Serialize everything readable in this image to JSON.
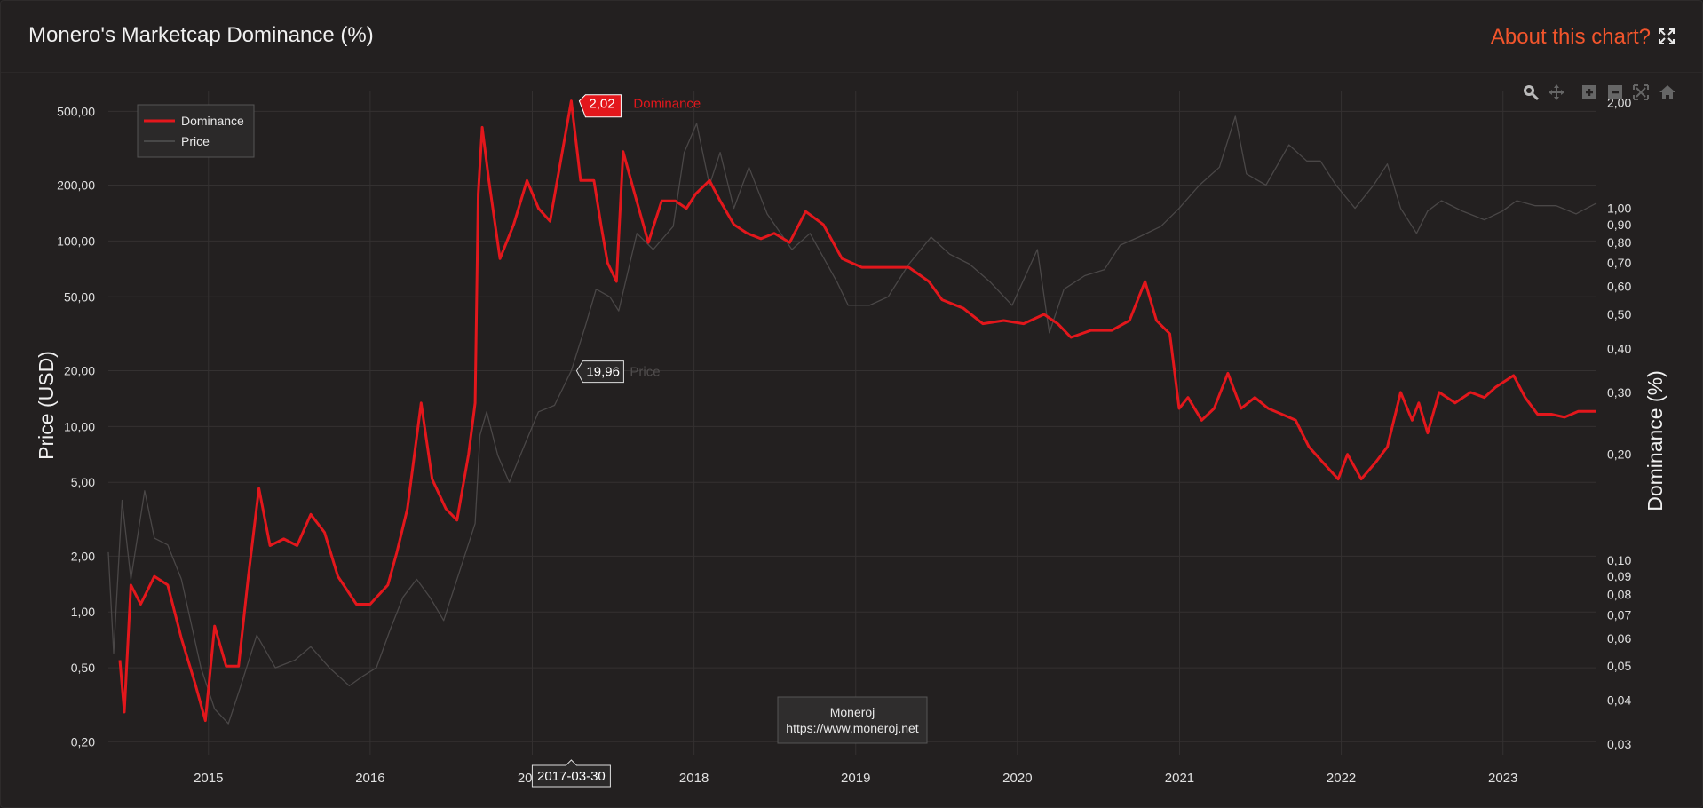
{
  "header": {
    "title": "Monero's Marketcap Dominance (%)",
    "about_label": "About this chart?"
  },
  "toolbar": {
    "icons": [
      "zoom-icon",
      "pan-icon",
      "zoom-in-icon",
      "zoom-out-icon",
      "autoscale-icon",
      "reset-home-icon"
    ]
  },
  "colors": {
    "dominance": "#e3171c",
    "price": "#4a4747",
    "accent": "#f2552c",
    "grid": "#343131"
  },
  "watermark": {
    "line1": "Moneroj",
    "line2": "https://www.moneroj.net"
  },
  "hover": {
    "date_label": "2017-03-30",
    "dominance_value": "2,02",
    "dominance_name": "Dominance",
    "price_value": "19,96",
    "price_name": "Price"
  },
  "chart_data": {
    "type": "line",
    "title": "Monero's Marketcap Dominance (%)",
    "xlabel": "",
    "y_left_label": "Price (USD)",
    "y_right_label": "Dominance (%)",
    "y_left_scale": "log",
    "y_right_scale": "log",
    "y_left_range": [
      0.17,
      640
    ],
    "y_right_range": [
      0.028,
      2.15
    ],
    "x_range": [
      "2014-05-20",
      "2023-07-31"
    ],
    "grid": true,
    "legend_position": "top-left",
    "x_ticks": [
      "2015",
      "2016",
      "2017",
      "2018",
      "2019",
      "2020",
      "2021",
      "2022",
      "2023"
    ],
    "y_left_ticks": [
      {
        "v": 0.2,
        "label": "0,20"
      },
      {
        "v": 0.5,
        "label": "0,50"
      },
      {
        "v": 1,
        "label": "1,00"
      },
      {
        "v": 2,
        "label": "2,00"
      },
      {
        "v": 5,
        "label": "5,00"
      },
      {
        "v": 10,
        "label": "10,00"
      },
      {
        "v": 20,
        "label": "20,00"
      },
      {
        "v": 50,
        "label": "50,00"
      },
      {
        "v": 100,
        "label": "100,00"
      },
      {
        "v": 200,
        "label": "200,00"
      },
      {
        "v": 500,
        "label": "500,00"
      }
    ],
    "y_right_ticks": [
      {
        "v": 0.03,
        "label": "0,03"
      },
      {
        "v": 0.04,
        "label": "0,04"
      },
      {
        "v": 0.05,
        "label": "0,05"
      },
      {
        "v": 0.06,
        "label": "0,06"
      },
      {
        "v": 0.07,
        "label": "0,07"
      },
      {
        "v": 0.08,
        "label": "0,08"
      },
      {
        "v": 0.09,
        "label": "0,09"
      },
      {
        "v": 0.1,
        "label": "0,10"
      },
      {
        "v": 0.2,
        "label": "0,20"
      },
      {
        "v": 0.3,
        "label": "0,30"
      },
      {
        "v": 0.4,
        "label": "0,40"
      },
      {
        "v": 0.5,
        "label": "0,50"
      },
      {
        "v": 0.6,
        "label": "0,60"
      },
      {
        "v": 0.7,
        "label": "0,70"
      },
      {
        "v": 0.8,
        "label": "0,80"
      },
      {
        "v": 0.9,
        "label": "0,90"
      },
      {
        "v": 1,
        "label": "1,00"
      },
      {
        "v": 2,
        "label": "2,00"
      }
    ],
    "hover_date": "2017-03-30",
    "series": [
      {
        "name": "Price",
        "axis": "left",
        "points": [
          [
            "2014-05-20",
            2.1
          ],
          [
            "2014-06-01",
            0.6
          ],
          [
            "2014-06-20",
            4.0
          ],
          [
            "2014-07-10",
            1.5
          ],
          [
            "2014-08-10",
            4.5
          ],
          [
            "2014-09-01",
            2.5
          ],
          [
            "2014-10-01",
            2.3
          ],
          [
            "2014-11-01",
            1.5
          ],
          [
            "2014-12-15",
            0.5
          ],
          [
            "2015-01-15",
            0.3
          ],
          [
            "2015-02-15",
            0.25
          ],
          [
            "2015-03-15",
            0.4
          ],
          [
            "2015-04-20",
            0.75
          ],
          [
            "2015-06-01",
            0.5
          ],
          [
            "2015-07-15",
            0.55
          ],
          [
            "2015-08-20",
            0.65
          ],
          [
            "2015-10-01",
            0.5
          ],
          [
            "2015-11-15",
            0.4
          ],
          [
            "2015-12-15",
            0.45
          ],
          [
            "2016-01-15",
            0.5
          ],
          [
            "2016-02-15",
            0.8
          ],
          [
            "2016-03-15",
            1.2
          ],
          [
            "2016-04-15",
            1.5
          ],
          [
            "2016-05-15",
            1.2
          ],
          [
            "2016-06-15",
            0.9
          ],
          [
            "2016-07-15",
            1.5
          ],
          [
            "2016-08-01",
            2.0
          ],
          [
            "2016-08-25",
            3.0
          ],
          [
            "2016-09-05",
            9.0
          ],
          [
            "2016-09-20",
            12.0
          ],
          [
            "2016-10-15",
            7.0
          ],
          [
            "2016-11-10",
            5.0
          ],
          [
            "2016-12-15",
            8.0
          ],
          [
            "2017-01-15",
            12.0
          ],
          [
            "2017-02-20",
            13.0
          ],
          [
            "2017-03-30",
            19.96
          ],
          [
            "2017-05-01",
            35.0
          ],
          [
            "2017-05-25",
            55.0
          ],
          [
            "2017-06-25",
            50.0
          ],
          [
            "2017-07-15",
            42.0
          ],
          [
            "2017-08-25",
            110.0
          ],
          [
            "2017-10-01",
            90.0
          ],
          [
            "2017-11-15",
            120.0
          ],
          [
            "2017-12-10",
            300.0
          ],
          [
            "2018-01-07",
            430.0
          ],
          [
            "2018-02-05",
            200.0
          ],
          [
            "2018-03-01",
            300.0
          ],
          [
            "2018-04-01",
            150.0
          ],
          [
            "2018-05-05",
            250.0
          ],
          [
            "2018-06-15",
            140.0
          ],
          [
            "2018-08-10",
            90.0
          ],
          [
            "2018-09-20",
            110.0
          ],
          [
            "2018-11-20",
            60.0
          ],
          [
            "2018-12-15",
            45.0
          ],
          [
            "2019-02-01",
            45.0
          ],
          [
            "2019-03-15",
            50.0
          ],
          [
            "2019-05-01",
            75.0
          ],
          [
            "2019-06-20",
            105.0
          ],
          [
            "2019-08-01",
            85.0
          ],
          [
            "2019-09-15",
            75.0
          ],
          [
            "2019-11-01",
            60.0
          ],
          [
            "2019-12-20",
            45.0
          ],
          [
            "2020-02-15",
            90.0
          ],
          [
            "2020-03-13",
            32.0
          ],
          [
            "2020-04-15",
            55.0
          ],
          [
            "2020-06-01",
            65.0
          ],
          [
            "2020-07-15",
            70.0
          ],
          [
            "2020-08-20",
            95.0
          ],
          [
            "2020-10-01",
            105.0
          ],
          [
            "2020-11-20",
            120.0
          ],
          [
            "2020-12-31",
            150.0
          ],
          [
            "2021-02-15",
            200.0
          ],
          [
            "2021-04-01",
            250.0
          ],
          [
            "2021-05-07",
            470.0
          ],
          [
            "2021-06-01",
            230.0
          ],
          [
            "2021-07-15",
            200.0
          ],
          [
            "2021-09-05",
            330.0
          ],
          [
            "2021-10-15",
            270.0
          ],
          [
            "2021-11-15",
            270.0
          ],
          [
            "2021-12-20",
            200.0
          ],
          [
            "2022-02-01",
            150.0
          ],
          [
            "2022-03-15",
            200.0
          ],
          [
            "2022-04-15",
            260.0
          ],
          [
            "2022-05-15",
            150.0
          ],
          [
            "2022-06-20",
            110.0
          ],
          [
            "2022-07-15",
            145.0
          ],
          [
            "2022-08-15",
            165.0
          ],
          [
            "2022-10-01",
            145.0
          ],
          [
            "2022-11-20",
            130.0
          ],
          [
            "2022-12-31",
            145.0
          ],
          [
            "2023-02-01",
            165.0
          ],
          [
            "2023-03-15",
            155.0
          ],
          [
            "2023-05-01",
            155.0
          ],
          [
            "2023-06-15",
            140.0
          ],
          [
            "2023-07-31",
            160.0
          ]
        ]
      },
      {
        "name": "Dominance",
        "axis": "right",
        "points": [
          [
            "2014-06-15",
            0.052
          ],
          [
            "2014-06-25",
            0.037
          ],
          [
            "2014-07-10",
            0.085
          ],
          [
            "2014-08-01",
            0.075
          ],
          [
            "2014-09-01",
            0.09
          ],
          [
            "2014-10-01",
            0.085
          ],
          [
            "2014-11-01",
            0.06
          ],
          [
            "2014-12-01",
            0.045
          ],
          [
            "2014-12-25",
            0.035
          ],
          [
            "2015-01-15",
            0.065
          ],
          [
            "2015-02-10",
            0.05
          ],
          [
            "2015-03-10",
            0.05
          ],
          [
            "2015-04-01",
            0.09
          ],
          [
            "2015-04-25",
            0.16
          ],
          [
            "2015-05-20",
            0.11
          ],
          [
            "2015-06-20",
            0.115
          ],
          [
            "2015-07-20",
            0.11
          ],
          [
            "2015-08-20",
            0.135
          ],
          [
            "2015-09-20",
            0.12
          ],
          [
            "2015-10-20",
            0.09
          ],
          [
            "2015-12-01",
            0.075
          ],
          [
            "2016-01-01",
            0.075
          ],
          [
            "2016-02-10",
            0.085
          ],
          [
            "2016-03-01",
            0.105
          ],
          [
            "2016-03-25",
            0.14
          ],
          [
            "2016-04-25",
            0.28
          ],
          [
            "2016-05-20",
            0.17
          ],
          [
            "2016-06-20",
            0.14
          ],
          [
            "2016-07-15",
            0.13
          ],
          [
            "2016-08-10",
            0.2
          ],
          [
            "2016-08-25",
            0.28
          ],
          [
            "2016-09-01",
            1.1
          ],
          [
            "2016-09-10",
            1.7
          ],
          [
            "2016-09-25",
            1.2
          ],
          [
            "2016-10-20",
            0.72
          ],
          [
            "2016-11-20",
            0.9
          ],
          [
            "2016-12-20",
            1.2
          ],
          [
            "2017-01-15",
            1.0
          ],
          [
            "2017-02-10",
            0.92
          ],
          [
            "2017-03-30",
            2.02
          ],
          [
            "2017-04-20",
            1.2
          ],
          [
            "2017-05-20",
            1.2
          ],
          [
            "2017-06-05",
            0.9
          ],
          [
            "2017-06-20",
            0.7
          ],
          [
            "2017-07-10",
            0.62
          ],
          [
            "2017-07-25",
            1.45
          ],
          [
            "2017-08-20",
            1.1
          ],
          [
            "2017-09-20",
            0.8
          ],
          [
            "2017-10-20",
            1.05
          ],
          [
            "2017-11-20",
            1.05
          ],
          [
            "2017-12-15",
            1.0
          ],
          [
            "2018-01-05",
            1.1
          ],
          [
            "2018-02-05",
            1.2
          ],
          [
            "2018-03-01",
            1.05
          ],
          [
            "2018-04-01",
            0.9
          ],
          [
            "2018-05-01",
            0.85
          ],
          [
            "2018-06-01",
            0.82
          ],
          [
            "2018-07-01",
            0.85
          ],
          [
            "2018-08-05",
            0.8
          ],
          [
            "2018-09-10",
            0.98
          ],
          [
            "2018-10-20",
            0.9
          ],
          [
            "2018-12-01",
            0.72
          ],
          [
            "2019-01-15",
            0.68
          ],
          [
            "2019-03-01",
            0.68
          ],
          [
            "2019-05-01",
            0.68
          ],
          [
            "2019-06-15",
            0.62
          ],
          [
            "2019-07-15",
            0.55
          ],
          [
            "2019-09-01",
            0.52
          ],
          [
            "2019-10-15",
            0.47
          ],
          [
            "2019-12-01",
            0.48
          ],
          [
            "2020-01-15",
            0.47
          ],
          [
            "2020-03-01",
            0.5
          ],
          [
            "2020-04-01",
            0.47
          ],
          [
            "2020-05-01",
            0.43
          ],
          [
            "2020-06-15",
            0.45
          ],
          [
            "2020-08-01",
            0.45
          ],
          [
            "2020-09-10",
            0.48
          ],
          [
            "2020-10-15",
            0.62
          ],
          [
            "2020-11-10",
            0.48
          ],
          [
            "2020-12-10",
            0.44
          ],
          [
            "2020-12-31",
            0.27
          ],
          [
            "2021-01-20",
            0.29
          ],
          [
            "2021-02-20",
            0.25
          ],
          [
            "2021-03-20",
            0.27
          ],
          [
            "2021-04-20",
            0.34
          ],
          [
            "2021-05-20",
            0.27
          ],
          [
            "2021-06-20",
            0.29
          ],
          [
            "2021-07-20",
            0.27
          ],
          [
            "2021-08-20",
            0.26
          ],
          [
            "2021-09-20",
            0.25
          ],
          [
            "2021-10-20",
            0.21
          ],
          [
            "2021-11-20",
            0.19
          ],
          [
            "2021-12-25",
            0.17
          ],
          [
            "2022-01-15",
            0.2
          ],
          [
            "2022-02-15",
            0.17
          ],
          [
            "2022-03-20",
            0.19
          ],
          [
            "2022-04-15",
            0.21
          ],
          [
            "2022-05-15",
            0.3
          ],
          [
            "2022-06-10",
            0.25
          ],
          [
            "2022-06-25",
            0.28
          ],
          [
            "2022-07-15",
            0.23
          ],
          [
            "2022-08-10",
            0.3
          ],
          [
            "2022-09-15",
            0.28
          ],
          [
            "2022-10-20",
            0.3
          ],
          [
            "2022-11-20",
            0.29
          ],
          [
            "2022-12-15",
            0.31
          ],
          [
            "2023-01-25",
            0.335
          ],
          [
            "2023-02-20",
            0.29
          ],
          [
            "2023-03-20",
            0.26
          ],
          [
            "2023-04-20",
            0.26
          ],
          [
            "2023-05-20",
            0.255
          ],
          [
            "2023-06-20",
            0.265
          ],
          [
            "2023-07-31",
            0.265
          ]
        ]
      }
    ]
  }
}
